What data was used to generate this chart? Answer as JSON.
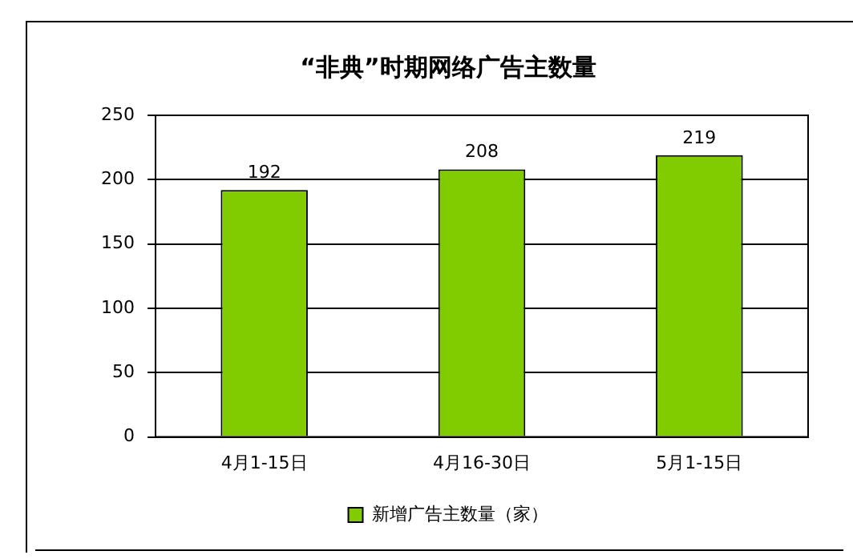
{
  "chart_data": {
    "type": "bar",
    "title": "“非典”时期网络广告主数量",
    "categories": [
      "4月1-15日",
      "4月16-30日",
      "5月1-15日"
    ],
    "series": [
      {
        "name": "新增广告主数量（家）",
        "color": "#80cc00",
        "values": [
          192,
          208,
          219
        ]
      }
    ],
    "ylim": [
      0,
      250
    ],
    "yticks": [
      0,
      50,
      100,
      150,
      200,
      250
    ],
    "grid": "y",
    "legend": "bottom",
    "data_labels": true
  }
}
